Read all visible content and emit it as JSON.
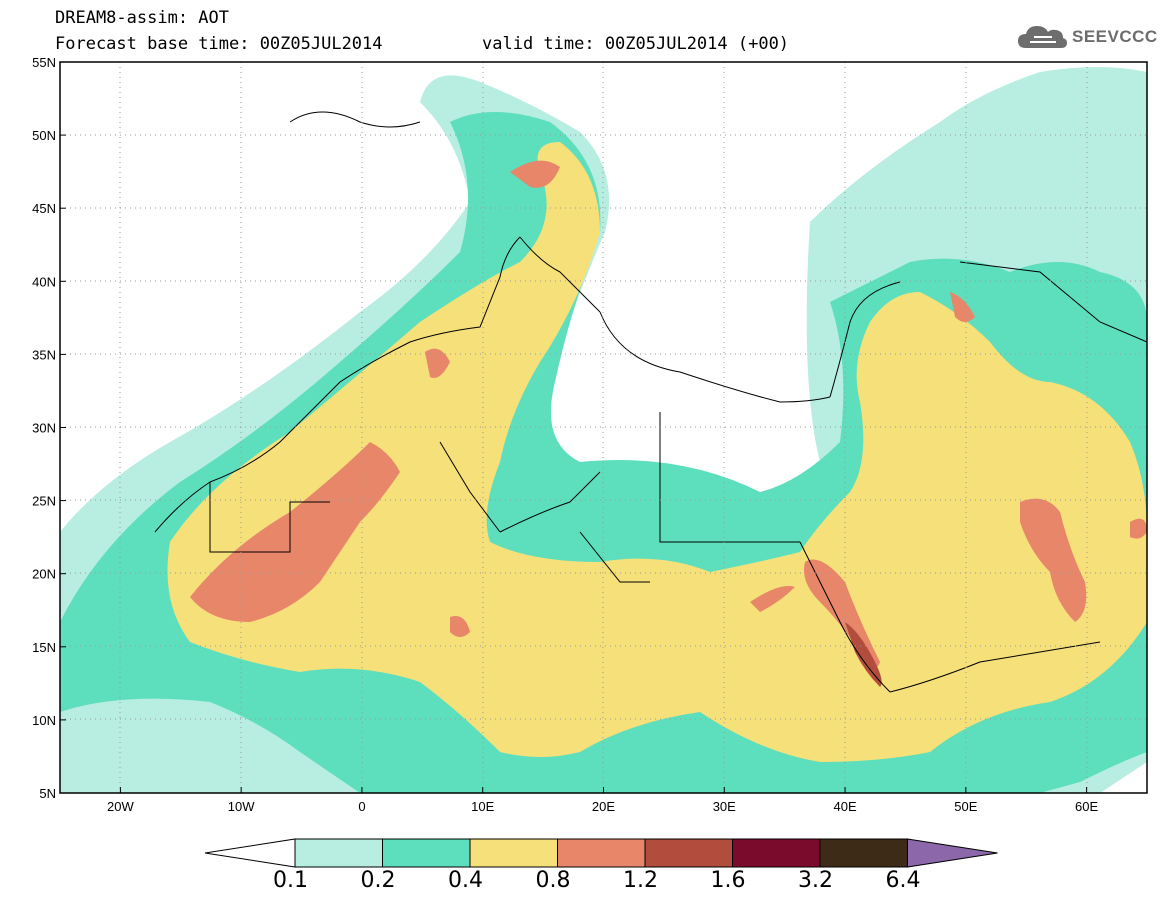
{
  "header": {
    "title": "DREAM8-assim: AOT",
    "forecast_base": "Forecast base time: 00Z05JUL2014",
    "valid_time": "valid time: 00Z05JUL2014 (+00)",
    "logo": "SEEVCCC",
    "logo_icon": "cloud-icon"
  },
  "map": {
    "lon_range": [
      -25,
      65
    ],
    "lat_range": [
      5,
      55
    ],
    "lon_ticks": [
      "20W",
      "10W",
      "0",
      "10E",
      "20E",
      "30E",
      "40E",
      "50E",
      "60E"
    ],
    "lat_ticks": [
      "55N",
      "50N",
      "45N",
      "40N",
      "35N",
      "30N",
      "25N",
      "20N",
      "15N",
      "10N",
      "5N"
    ]
  },
  "colorbar": {
    "levels": [
      "0.1",
      "0.2",
      "0.4",
      "0.8",
      "1.2",
      "1.6",
      "3.2",
      "6.4"
    ],
    "colors": [
      "#ffffff",
      "#b8ede1",
      "#5ddfbd",
      "#f6e07a",
      "#e8866a",
      "#b24c3c",
      "#7b0b2d",
      "#3d2a17",
      "#8c67aa"
    ]
  }
}
